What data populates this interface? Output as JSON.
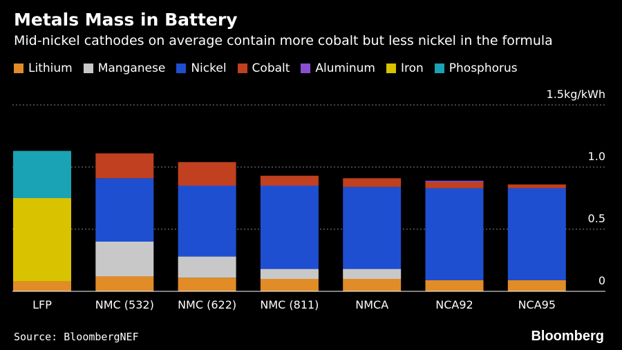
{
  "chart_data": {
    "type": "bar",
    "stacked": true,
    "title": "Metals Mass in Battery",
    "subtitle": "Mid-nickel cathodes on average contain more cobalt but less nickel in the formula",
    "categories": [
      "LFP",
      "NMC (532)",
      "NMC (622)",
      "NMC (811)",
      "NMCA",
      "NCA92",
      "NCA95"
    ],
    "series": [
      {
        "name": "Lithium",
        "color": "#e28c27",
        "values": [
          0.08,
          0.12,
          0.11,
          0.1,
          0.1,
          0.09,
          0.09
        ]
      },
      {
        "name": "Manganese",
        "color": "#c8c8c8",
        "values": [
          0,
          0.28,
          0.17,
          0.08,
          0.08,
          0,
          0
        ]
      },
      {
        "name": "Nickel",
        "color": "#1f4fd1",
        "values": [
          0,
          0.51,
          0.57,
          0.67,
          0.66,
          0.74,
          0.74
        ]
      },
      {
        "name": "Cobalt",
        "color": "#c0401f",
        "values": [
          0,
          0.2,
          0.19,
          0.08,
          0.07,
          0.05,
          0.03
        ]
      },
      {
        "name": "Aluminum",
        "color": "#8a4fd1",
        "values": [
          0,
          0,
          0,
          0,
          0,
          0.01,
          0
        ]
      },
      {
        "name": "Iron",
        "color": "#d9c200",
        "values": [
          0.67,
          0,
          0,
          0,
          0,
          0,
          0
        ]
      },
      {
        "name": "Phosphorus",
        "color": "#1aa3b4",
        "values": [
          0.38,
          0,
          0,
          0,
          0,
          0,
          0
        ]
      }
    ],
    "ylim": [
      0,
      1.5
    ],
    "yticks": [
      0,
      0.5,
      1.0,
      1.5
    ],
    "ytick_labels": [
      "0",
      "0.5",
      "1.0",
      "1.5kg/kWh"
    ],
    "grid": true,
    "legend_position": "top-left"
  },
  "footer": {
    "source": "Source: BloombergNEF",
    "brand": "Bloomberg"
  }
}
